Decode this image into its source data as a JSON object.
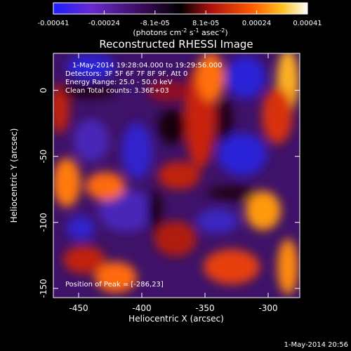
{
  "chart_data": {
    "type": "heatmap",
    "title": "Reconstructed RHESSI Image",
    "xlabel": "Heliocentric X (arcsec)",
    "ylabel": "Heliocentric Y (arcsec)",
    "xlim": [
      -470,
      -275
    ],
    "ylim": [
      -157,
      28
    ],
    "x_ticks": [
      -450,
      -400,
      -350,
      -300
    ],
    "y_ticks": [
      0,
      -50,
      -100,
      -150
    ],
    "colorbar": {
      "min": -0.00041,
      "max": 0.00041,
      "ticks": [
        "-0.00041",
        "-0.00024",
        "-8.1e-05",
        "8.1e-05",
        "0.00024",
        "0.00041"
      ],
      "units_label": "(photons cm",
      "units_exp1": "-2",
      "units_mid": " s",
      "units_exp2": "-1",
      "units_mid2": " asec",
      "units_exp3": "-2",
      "units_close": ")",
      "colors": [
        "#1e1eff",
        "#6a2ad0",
        "#3a0a5a",
        "#000000",
        "#b01010",
        "#ff5a00",
        "#ffc020",
        "#ffffff"
      ]
    },
    "annotations": {
      "time": "1-May-2014 19:28:04.000 to 19:29:56.000",
      "detectors": "Detectors: 3F 5F 6F 7F 8F 9F, Att 0",
      "energy": "Energy Range: 25.0 - 50.0 keV",
      "clean": "Clean    Total counts: 3.36E+03",
      "peak": "Position of Peak = [-286,23]"
    },
    "timestamp": "1-May-2014 20:56"
  }
}
